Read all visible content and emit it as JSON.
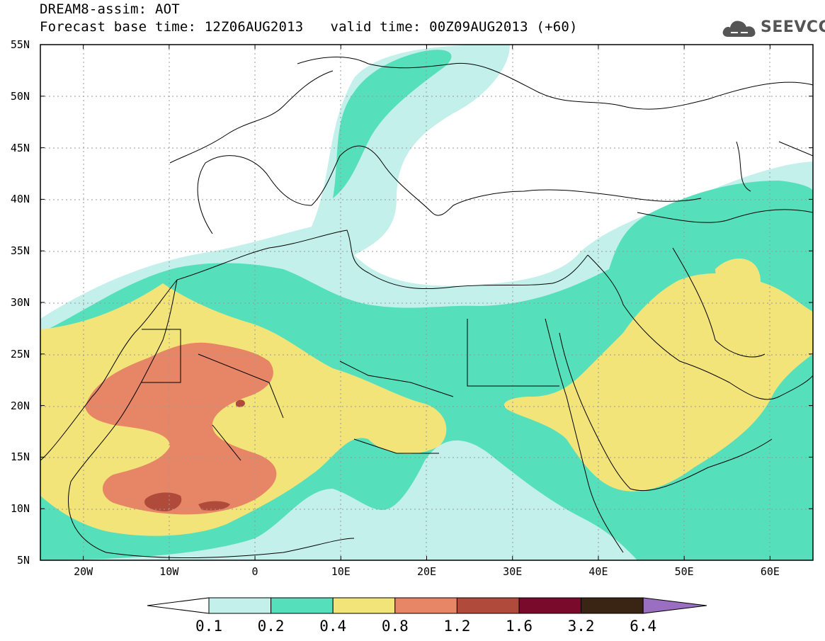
{
  "header": {
    "title_line1": "DREAM8-assim: AOT",
    "base_time": "Forecast base time: 12Z06AUG2013",
    "valid_time": "valid time: 00Z09AUG2013 (+60)"
  },
  "logo": {
    "text": "SEEVCCC",
    "icon": "cloud-icon"
  },
  "map": {
    "lat_labels": [
      "55N",
      "50N",
      "45N",
      "40N",
      "35N",
      "30N",
      "25N",
      "20N",
      "15N",
      "10N",
      "5N"
    ],
    "lon_labels": [
      "20W",
      "10W",
      "0",
      "10E",
      "20E",
      "30E",
      "40E",
      "50E",
      "60E"
    ],
    "lon_range": [
      -25,
      65
    ],
    "lat_range": [
      5,
      55
    ],
    "grid": true
  },
  "colorbar": {
    "levels": [
      "0.1",
      "0.2",
      "0.4",
      "0.8",
      "1.2",
      "1.6",
      "3.2",
      "6.4"
    ],
    "colors": [
      "#c3f0ea",
      "#55e0bb",
      "#f3e47a",
      "#e68666",
      "#b04b3c",
      "#7a0a2c",
      "#3a2414",
      "#9a6ec0"
    ],
    "under_color": "#ffffff"
  }
}
